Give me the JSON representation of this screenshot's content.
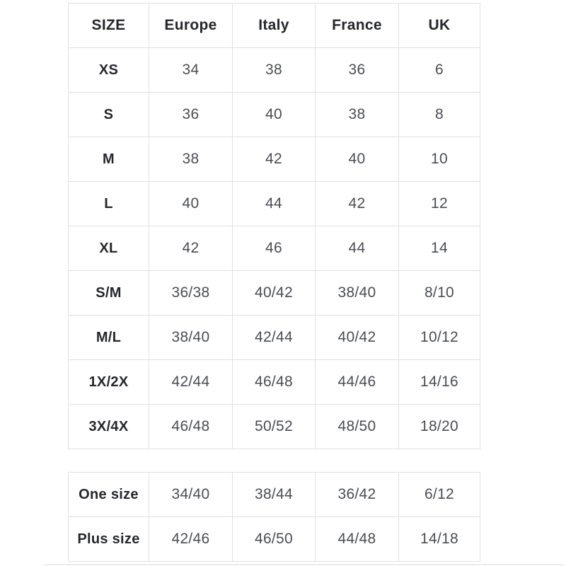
{
  "colors": {
    "background": "#ffffff",
    "border": "#e0e1e4",
    "header_text": "#26272c",
    "cell_text": "#4b4d54",
    "divider": "#ececef"
  },
  "table_main": {
    "columns": [
      "SIZE",
      "Europe",
      "Italy",
      "France",
      "UK"
    ],
    "rows": [
      {
        "size": "XS",
        "values": [
          "34",
          "38",
          "36",
          "6"
        ]
      },
      {
        "size": "S",
        "values": [
          "36",
          "40",
          "38",
          "8"
        ]
      },
      {
        "size": "M",
        "values": [
          "38",
          "42",
          "40",
          "10"
        ]
      },
      {
        "size": "L",
        "values": [
          "40",
          "44",
          "42",
          "12"
        ]
      },
      {
        "size": "XL",
        "values": [
          "42",
          "46",
          "44",
          "14"
        ]
      },
      {
        "size": "S/M",
        "values": [
          "36/38",
          "40/42",
          "38/40",
          "8/10"
        ]
      },
      {
        "size": "M/L",
        "values": [
          "38/40",
          "42/44",
          "40/42",
          "10/12"
        ]
      },
      {
        "size": "1X/2X",
        "values": [
          "42/44",
          "46/48",
          "44/46",
          "14/16"
        ]
      },
      {
        "size": "3X/4X",
        "values": [
          "46/48",
          "50/52",
          "48/50",
          "18/20"
        ]
      }
    ]
  },
  "table_special": {
    "rows": [
      {
        "size": "One size",
        "values": [
          "34/40",
          "38/44",
          "36/42",
          "6/12"
        ]
      },
      {
        "size": "Plus size",
        "values": [
          "42/46",
          "46/50",
          "44/48",
          "14/18"
        ]
      }
    ]
  }
}
